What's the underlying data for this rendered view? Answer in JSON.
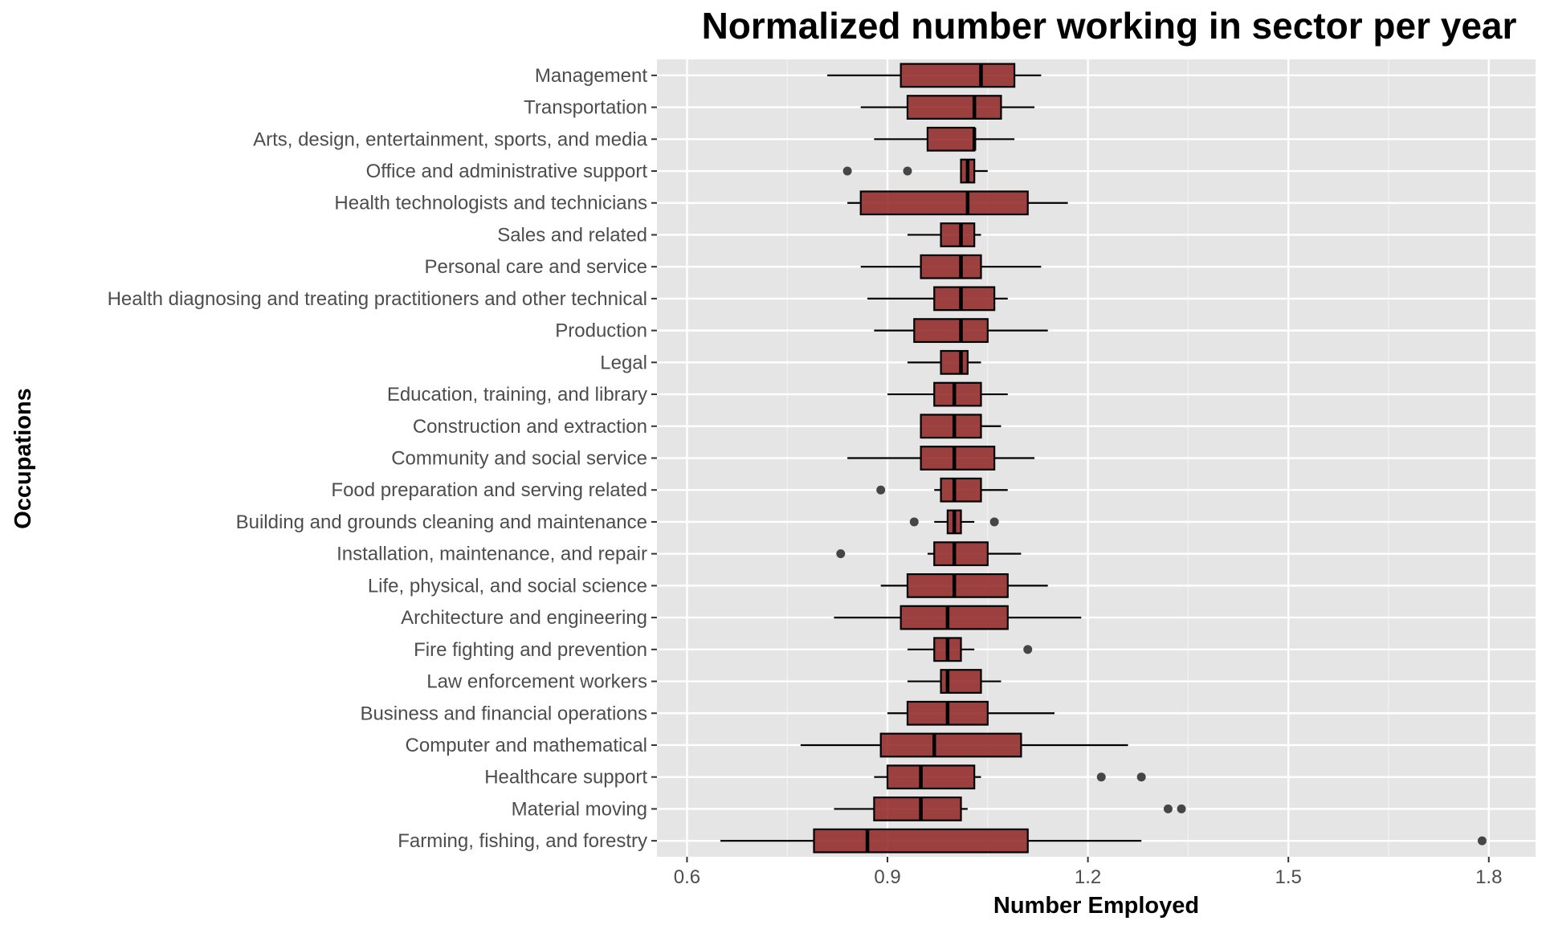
{
  "chart_data": {
    "type": "boxplot",
    "orientation": "horizontal",
    "title": "Normalized number working in sector per year",
    "xlabel": "Number Employed",
    "ylabel": "Occupations",
    "xlim": [
      0.555,
      1.87
    ],
    "x_ticks": [
      "0.6",
      "0.9",
      "1.2",
      "1.5",
      "1.8"
    ],
    "grid": true,
    "colors": {
      "panel": "#e5e5e5",
      "grid_major": "#ffffff",
      "grid_minor": "#f2f2f2",
      "box_fill": "#8b1a1a",
      "outline": "#000000",
      "outlier": "#333333",
      "tick_text": "#4d4d4d"
    },
    "categories": [
      "Management",
      "Transportation",
      "Arts, design, entertainment, sports, and media",
      "Office and administrative support",
      "Health technologists and technicians",
      "Sales and related",
      "Personal care and service",
      "Health diagnosing and treating practitioners and other technical",
      "Production",
      "Legal",
      "Education, training, and library",
      "Construction and extraction",
      "Community and social service",
      "Food preparation and serving related",
      "Building and grounds cleaning and maintenance",
      "Installation, maintenance, and repair",
      "Life, physical, and social science",
      "Architecture and engineering",
      "Fire fighting and prevention",
      "Law enforcement workers",
      "Business and financial operations",
      "Computer and mathematical",
      "Healthcare support",
      "Material moving",
      "Farming, fishing, and forestry"
    ],
    "boxes": [
      {
        "whisker_low": 0.81,
        "q1": 0.92,
        "median": 1.04,
        "q3": 1.09,
        "whisker_high": 1.13,
        "outliers": []
      },
      {
        "whisker_low": 0.86,
        "q1": 0.93,
        "median": 1.03,
        "q3": 1.07,
        "whisker_high": 1.12,
        "outliers": []
      },
      {
        "whisker_low": 0.88,
        "q1": 0.96,
        "median": 1.03,
        "q3": 1.03,
        "whisker_high": 1.09,
        "outliers": []
      },
      {
        "whisker_low": 1.01,
        "q1": 1.01,
        "median": 1.02,
        "q3": 1.03,
        "whisker_high": 1.05,
        "outliers": [
          0.84,
          0.93
        ]
      },
      {
        "whisker_low": 0.84,
        "q1": 0.86,
        "median": 1.02,
        "q3": 1.11,
        "whisker_high": 1.17,
        "outliers": []
      },
      {
        "whisker_low": 0.93,
        "q1": 0.98,
        "median": 1.01,
        "q3": 1.03,
        "whisker_high": 1.04,
        "outliers": []
      },
      {
        "whisker_low": 0.86,
        "q1": 0.95,
        "median": 1.01,
        "q3": 1.04,
        "whisker_high": 1.13,
        "outliers": []
      },
      {
        "whisker_low": 0.87,
        "q1": 0.97,
        "median": 1.01,
        "q3": 1.06,
        "whisker_high": 1.08,
        "outliers": []
      },
      {
        "whisker_low": 0.88,
        "q1": 0.94,
        "median": 1.01,
        "q3": 1.05,
        "whisker_high": 1.14,
        "outliers": []
      },
      {
        "whisker_low": 0.93,
        "q1": 0.98,
        "median": 1.01,
        "q3": 1.02,
        "whisker_high": 1.04,
        "outliers": []
      },
      {
        "whisker_low": 0.9,
        "q1": 0.97,
        "median": 1.0,
        "q3": 1.04,
        "whisker_high": 1.08,
        "outliers": []
      },
      {
        "whisker_low": 0.95,
        "q1": 0.95,
        "median": 1.0,
        "q3": 1.04,
        "whisker_high": 1.07,
        "outliers": []
      },
      {
        "whisker_low": 0.84,
        "q1": 0.95,
        "median": 1.0,
        "q3": 1.06,
        "whisker_high": 1.12,
        "outliers": []
      },
      {
        "whisker_low": 0.97,
        "q1": 0.98,
        "median": 1.0,
        "q3": 1.04,
        "whisker_high": 1.08,
        "outliers": [
          0.89
        ]
      },
      {
        "whisker_low": 0.97,
        "q1": 0.99,
        "median": 1.0,
        "q3": 1.01,
        "whisker_high": 1.03,
        "outliers": [
          0.94,
          1.06
        ]
      },
      {
        "whisker_low": 0.96,
        "q1": 0.97,
        "median": 1.0,
        "q3": 1.05,
        "whisker_high": 1.1,
        "outliers": [
          0.83
        ]
      },
      {
        "whisker_low": 0.89,
        "q1": 0.93,
        "median": 1.0,
        "q3": 1.08,
        "whisker_high": 1.14,
        "outliers": []
      },
      {
        "whisker_low": 0.82,
        "q1": 0.92,
        "median": 0.99,
        "q3": 1.08,
        "whisker_high": 1.19,
        "outliers": []
      },
      {
        "whisker_low": 0.93,
        "q1": 0.97,
        "median": 0.99,
        "q3": 1.01,
        "whisker_high": 1.03,
        "outliers": [
          1.11
        ]
      },
      {
        "whisker_low": 0.93,
        "q1": 0.98,
        "median": 0.99,
        "q3": 1.04,
        "whisker_high": 1.07,
        "outliers": []
      },
      {
        "whisker_low": 0.9,
        "q1": 0.93,
        "median": 0.99,
        "q3": 1.05,
        "whisker_high": 1.15,
        "outliers": []
      },
      {
        "whisker_low": 0.77,
        "q1": 0.89,
        "median": 0.97,
        "q3": 1.1,
        "whisker_high": 1.26,
        "outliers": []
      },
      {
        "whisker_low": 0.88,
        "q1": 0.9,
        "median": 0.95,
        "q3": 1.03,
        "whisker_high": 1.04,
        "outliers": [
          1.22,
          1.28
        ]
      },
      {
        "whisker_low": 0.82,
        "q1": 0.88,
        "median": 0.95,
        "q3": 1.01,
        "whisker_high": 1.02,
        "outliers": [
          1.32,
          1.34
        ]
      },
      {
        "whisker_low": 0.65,
        "q1": 0.79,
        "median": 0.87,
        "q3": 1.11,
        "whisker_high": 1.28,
        "outliers": [
          1.79
        ]
      }
    ]
  }
}
